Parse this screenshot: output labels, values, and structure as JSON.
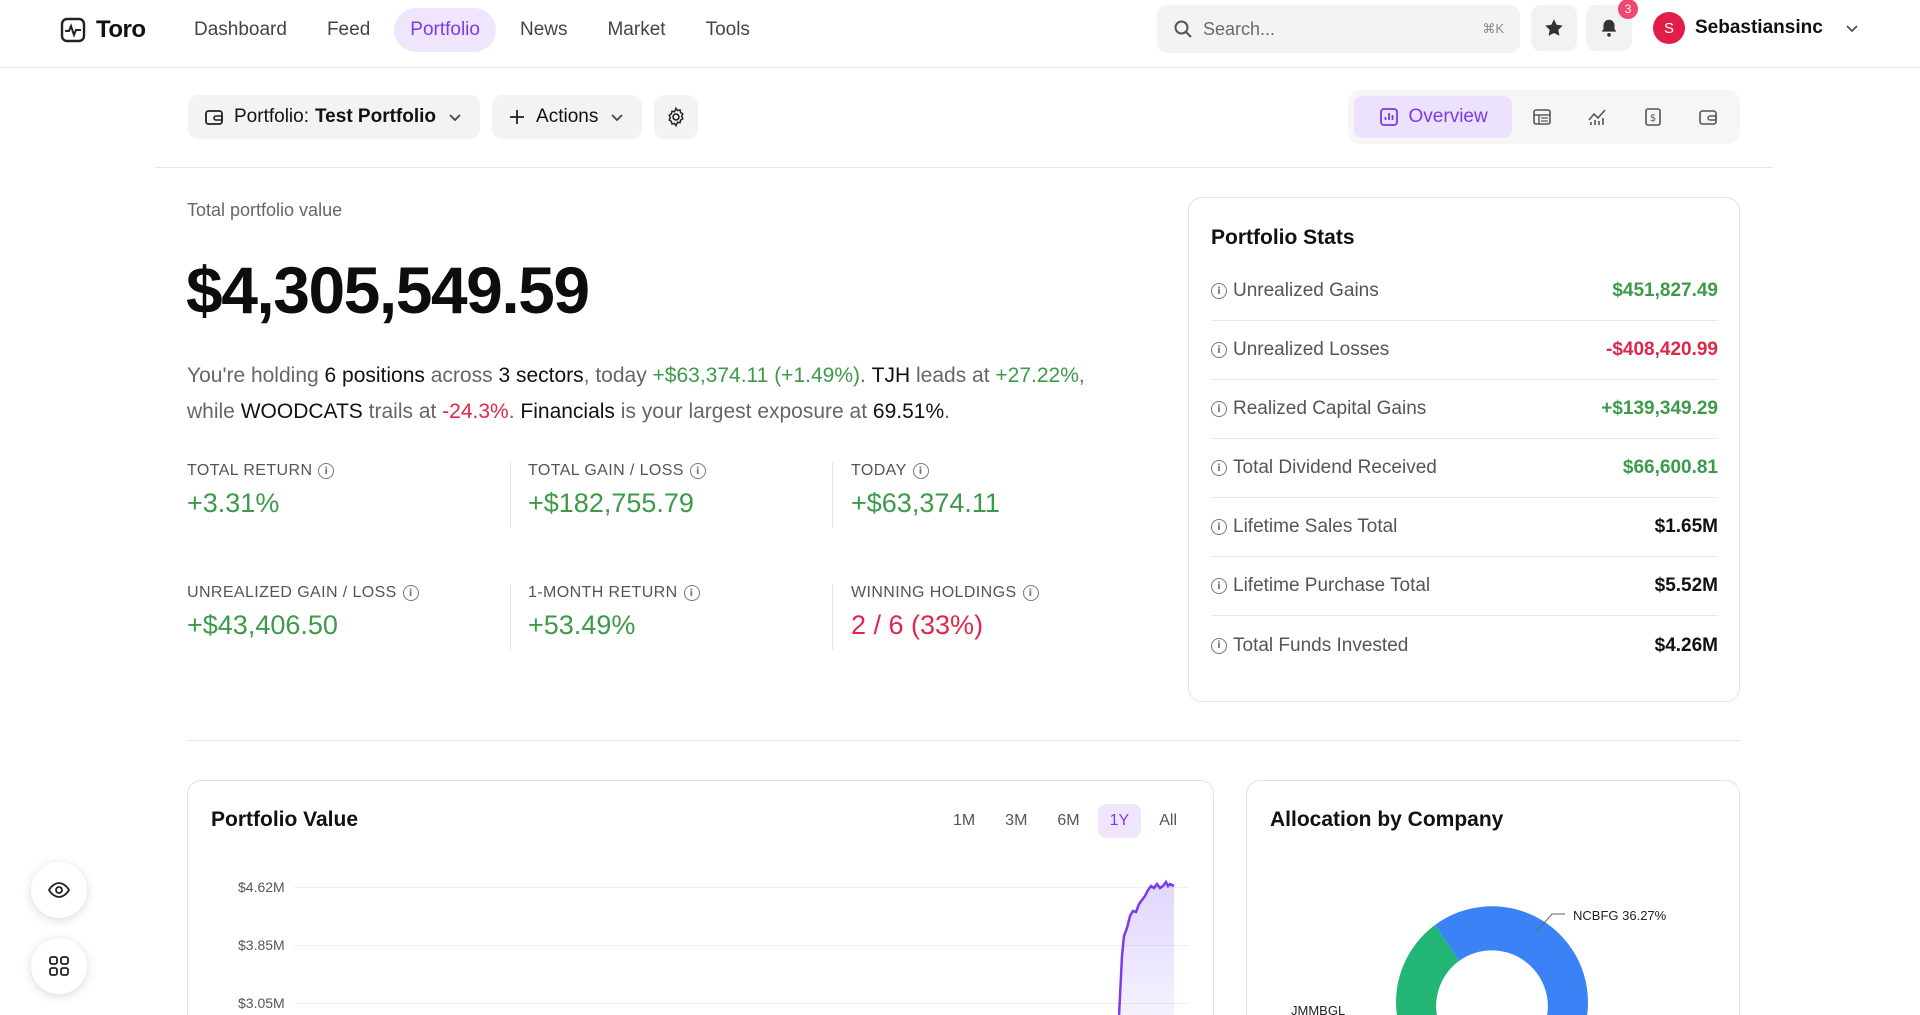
{
  "app": {
    "name": "Toro"
  },
  "nav": {
    "items": [
      {
        "label": "Dashboard",
        "active": false
      },
      {
        "label": "Feed",
        "active": false
      },
      {
        "label": "Portfolio",
        "active": true
      },
      {
        "label": "News",
        "active": false
      },
      {
        "label": "Market",
        "active": false
      },
      {
        "label": "Tools",
        "active": false
      }
    ]
  },
  "search": {
    "placeholder": "Search...",
    "shortcut": "⌘K"
  },
  "notifications": {
    "count": "3"
  },
  "user": {
    "initial": "S",
    "name": "Sebastiansinc"
  },
  "toolbar": {
    "portfolio_prefix": "Portfolio:",
    "portfolio_name": "Test Portfolio",
    "actions_label": "Actions"
  },
  "view_tabs": {
    "active_label": "Overview"
  },
  "hero": {
    "label": "Total portfolio value",
    "value": "$4,305,549.59"
  },
  "summary": {
    "t1": "You're holding ",
    "positions": "6 positions",
    "t2": " across ",
    "sectors": "3 sectors",
    "t3": ", today ",
    "today_change": "+$63,374.11 (+1.49%)",
    "t4": ". ",
    "leader": "TJH",
    "t5": " leads at ",
    "leader_pct": "+27.22%",
    "t6": ", while ",
    "laggard": "WOODCATS",
    "t7": " trails at ",
    "laggard_pct": "-24.3%",
    "t8": ". ",
    "sector": "Financials",
    "t9": " is your largest exposure at ",
    "sector_pct": "69.51%",
    "t10": "."
  },
  "metrics": [
    {
      "label": "TOTAL RETURN",
      "value": "+3.31%",
      "tone": "pos"
    },
    {
      "label": "TOTAL GAIN / LOSS",
      "value": "+$182,755.79",
      "tone": "pos"
    },
    {
      "label": "TODAY",
      "value": "+$63,374.11",
      "tone": "pos"
    },
    {
      "label": "UNREALIZED GAIN / LOSS",
      "value": "+$43,406.50",
      "tone": "pos"
    },
    {
      "label": "1-MONTH RETURN",
      "value": "+53.49%",
      "tone": "pos"
    },
    {
      "label": "WINNING HOLDINGS",
      "value": "2 / 6 (33%)",
      "tone": "neg"
    }
  ],
  "stats": {
    "title": "Portfolio Stats",
    "rows": [
      {
        "label": "Unrealized Gains",
        "value": "$451,827.49",
        "tone": "pos"
      },
      {
        "label": "Unrealized Losses",
        "value": "-$408,420.99",
        "tone": "neg"
      },
      {
        "label": "Realized Capital Gains",
        "value": "+$139,349.29",
        "tone": "pos"
      },
      {
        "label": "Total Dividend Received",
        "value": "$66,600.81",
        "tone": "pos"
      },
      {
        "label": "Lifetime Sales Total",
        "value": "$1.65M",
        "tone": "plain"
      },
      {
        "label": "Lifetime Purchase Total",
        "value": "$5.52M",
        "tone": "plain"
      },
      {
        "label": "Total Funds Invested",
        "value": "$4.26M",
        "tone": "plain"
      }
    ]
  },
  "value_chart": {
    "title": "Portfolio Value",
    "ranges": [
      "1M",
      "3M",
      "6M",
      "1Y",
      "All"
    ],
    "active_range": "1Y",
    "y_ticks": [
      "$4.62M",
      "$3.85M",
      "$3.05M"
    ]
  },
  "allocation": {
    "title": "Allocation by Company",
    "labels": [
      {
        "name": "NCBFG",
        "pct": "36.27%"
      },
      {
        "name": "JMMBGL",
        "pct": ""
      }
    ]
  },
  "colors": {
    "accent": "#7c3aed",
    "positive": "#3d9a4a",
    "negative": "#e1264a",
    "donut_blue": "#3b82f6",
    "donut_green": "#22b573"
  }
}
